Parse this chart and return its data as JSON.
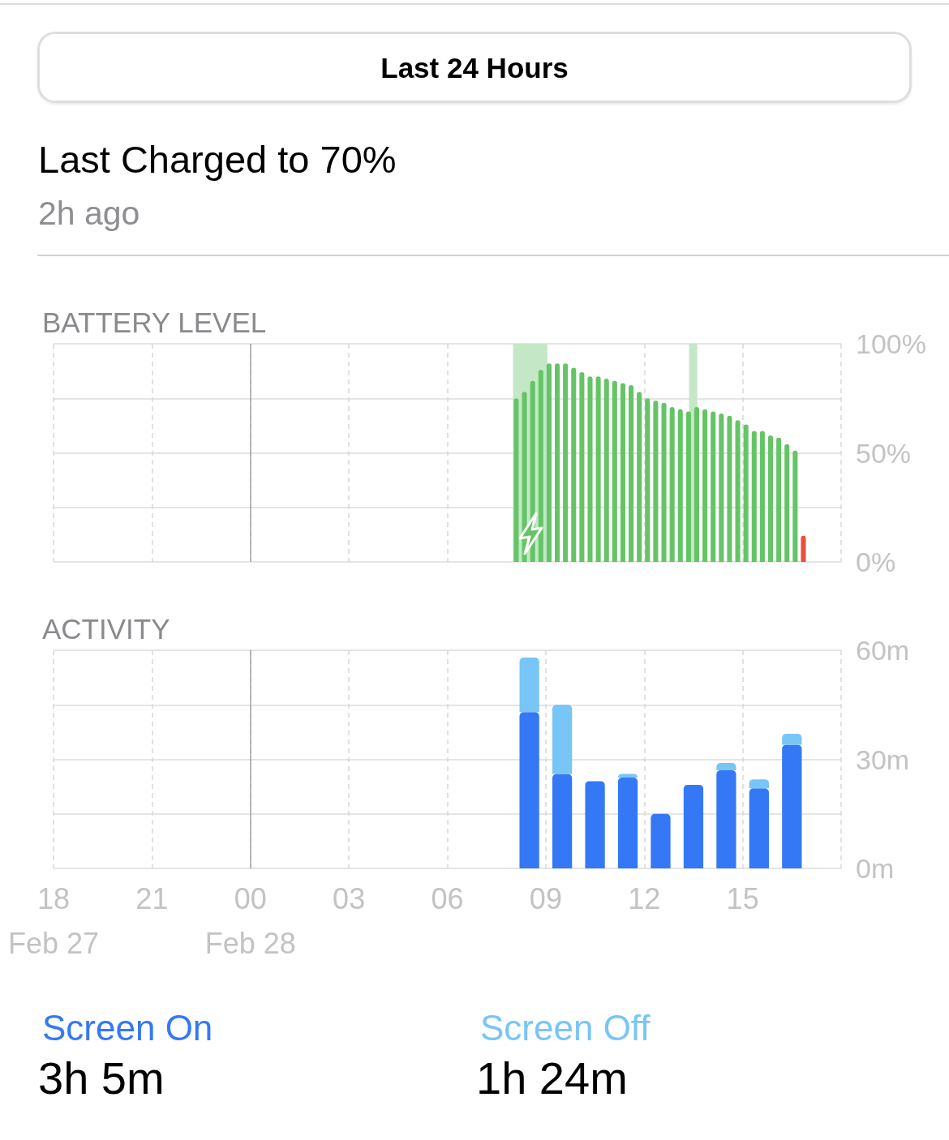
{
  "chart_data": [
    {
      "type": "other",
      "title": "Last Charged to 70%",
      "subtitle": "2h ago",
      "annotations": [
        "Last 24 Hours"
      ]
    },
    {
      "type": "bar",
      "title": "BATTERY LEVEL",
      "x": [
        "--02-28T08:06",
        "--02-28T08:21",
        "--02-28T08:36",
        "--02-28T08:51",
        "--02-28T09:06",
        "--02-28T09:21",
        "--02-28T09:36",
        "--02-28T09:51",
        "--02-28T10:06",
        "--02-28T10:21",
        "--02-28T10:36",
        "--02-28T10:51",
        "--02-28T11:06",
        "--02-28T11:21",
        "--02-28T11:36",
        "--02-28T11:51",
        "--02-28T12:06",
        "--02-28T12:21",
        "--02-28T12:36",
        "--02-28T12:51",
        "--02-28T13:06",
        "--02-28T13:21",
        "--02-28T13:36",
        "--02-28T13:51",
        "--02-28T14:06",
        "--02-28T14:21",
        "--02-28T14:36",
        "--02-28T14:51",
        "--02-28T15:06",
        "--02-28T15:21",
        "--02-28T15:36",
        "--02-28T15:51",
        "--02-28T16:06",
        "--02-28T16:21",
        "--02-28T16:36",
        "--02-28T16:51"
      ],
      "values": [
        75,
        78,
        83,
        88,
        91,
        91,
        91,
        89,
        87,
        85,
        85,
        84,
        83,
        82,
        81,
        78,
        75,
        74,
        73,
        71,
        70,
        69,
        71,
        70,
        69,
        68,
        67,
        65,
        63,
        60,
        60,
        58,
        57,
        54,
        51,
        12
      ],
      "colors": [
        "#65c466",
        "#65c466",
        "#65c466",
        "#65c466",
        "#65c466",
        "#65c466",
        "#65c466",
        "#65c466",
        "#65c466",
        "#65c466",
        "#65c466",
        "#65c466",
        "#65c466",
        "#65c466",
        "#65c466",
        "#65c466",
        "#65c466",
        "#65c466",
        "#65c466",
        "#65c466",
        "#65c466",
        "#65c466",
        "#65c466",
        "#65c466",
        "#65c466",
        "#65c466",
        "#65c466",
        "#65c466",
        "#65c466",
        "#65c466",
        "#65c466",
        "#65c466",
        "#65c466",
        "#65c466",
        "#65c466",
        "#eb4e3d"
      ],
      "xlim": [
        "--02-27T18:00",
        "--02-28T18:00"
      ],
      "xticks": [
        {
          "value": "--02-27T18:00",
          "label": null
        },
        {
          "value": "--02-27T21:00",
          "label": null
        },
        {
          "value": "--02-28T00:00",
          "label": null
        },
        {
          "value": "--02-28T03:00",
          "label": null
        },
        {
          "value": "--02-28T06:00",
          "label": null
        },
        {
          "value": "--02-28T09:00",
          "label": null
        },
        {
          "value": "--02-28T12:00",
          "label": null
        },
        {
          "value": "--02-28T15:00",
          "label": null
        }
      ],
      "ylim": [
        0,
        100
      ],
      "yticks": [
        {
          "value": 0,
          "label": "0%"
        },
        {
          "value": 25,
          "label": null
        },
        {
          "value": 50,
          "label": "50%"
        },
        {
          "value": 75,
          "label": null
        },
        {
          "value": 100,
          "label": "100%"
        }
      ],
      "bands": [
        {
          "axis": "x",
          "from": "--02-28T08:00",
          "to": "--02-28T09:03",
          "color": "#c4e8c5"
        },
        {
          "axis": "x",
          "from": "--02-28T13:22",
          "to": "--02-28T13:37",
          "color": "#c4e8c5"
        }
      ],
      "ref_lines": [
        {
          "axis": "x",
          "value": "--02-28T00:00",
          "color": "#a3a3a3"
        }
      ],
      "grid": true,
      "tick_labels": "y"
    },
    {
      "type": "bar",
      "title": "ACTIVITY",
      "stacked": true,
      "x": [
        "--02-28T08:30",
        "--02-28T09:30",
        "--02-28T10:30",
        "--02-28T11:30",
        "--02-28T12:30",
        "--02-28T13:30",
        "--02-28T14:30",
        "--02-28T15:30",
        "--02-28T16:30"
      ],
      "series": [
        {
          "name": "Screen On",
          "color": "#3478f6",
          "values": [
            43,
            26,
            24,
            25,
            15,
            23,
            27,
            22,
            34
          ]
        },
        {
          "name": "Screen Off",
          "color": "#78c5f7",
          "values": [
            15,
            19,
            null,
            1,
            null,
            null,
            2,
            2.5,
            3
          ]
        }
      ],
      "xlim": [
        "--02-27T18:00",
        "--02-28T18:00"
      ],
      "xticks": [
        {
          "value": "--02-27T18:00",
          "label": "18\nFeb 27"
        },
        {
          "value": "--02-27T21:00",
          "label": "21"
        },
        {
          "value": "--02-28T00:00",
          "label": "00\nFeb 28"
        },
        {
          "value": "--02-28T03:00",
          "label": "03"
        },
        {
          "value": "--02-28T06:00",
          "label": "06"
        },
        {
          "value": "--02-28T09:00",
          "label": "09"
        },
        {
          "value": "--02-28T12:00",
          "label": "12"
        },
        {
          "value": "--02-28T15:00",
          "label": "15"
        }
      ],
      "ylim": [
        0,
        60
      ],
      "yticks": [
        {
          "value": 0,
          "label": "0m"
        },
        {
          "value": 15,
          "label": null
        },
        {
          "value": 30,
          "label": "30m"
        },
        {
          "value": 45,
          "label": null
        },
        {
          "value": 60,
          "label": "60m"
        }
      ],
      "ref_lines": [
        {
          "axis": "x",
          "value": "--02-28T00:00",
          "color": "#a3a3a3"
        }
      ],
      "grid": true,
      "legend": "bottom",
      "annotations": [
        "3h 5m",
        "1h 24m"
      ]
    }
  ]
}
